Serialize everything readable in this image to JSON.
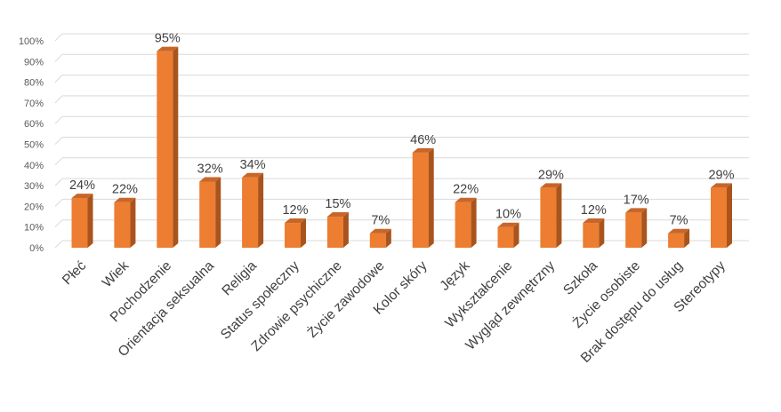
{
  "chart_data": {
    "type": "bar",
    "style": "3d-column",
    "bar_color": "#ED7D31",
    "bar_side_color": "#A9541C",
    "bar_top_color": "#C8662A",
    "categories": [
      "Płeć",
      "Wiek",
      "Pochodzenie",
      "Orientacja seksualna",
      "Religia",
      "Status społeczny",
      "Zdrowie psychiczne",
      "Życie zawodowe",
      "Kolor skóry",
      "Język",
      "Wykształcenie",
      "Wygląd zewnętrzny",
      "Szkoła",
      "Życie osobiste",
      "Brak dostępu do usług",
      "Stereotypy"
    ],
    "values": [
      24,
      22,
      95,
      32,
      34,
      12,
      15,
      7,
      46,
      22,
      10,
      29,
      12,
      17,
      7,
      29
    ],
    "data_labels": [
      "24%",
      "22%",
      "95%",
      "32%",
      "34%",
      "12%",
      "15%",
      "7%",
      "46%",
      "22%",
      "10%",
      "29%",
      "12%",
      "17%",
      "7%",
      "29%"
    ],
    "yticks": [
      "0%",
      "10%",
      "20%",
      "30%",
      "40%",
      "50%",
      "60%",
      "70%",
      "80%",
      "90%",
      "100%"
    ],
    "ylim": [
      0,
      100
    ],
    "grid": true,
    "legend": "none"
  }
}
